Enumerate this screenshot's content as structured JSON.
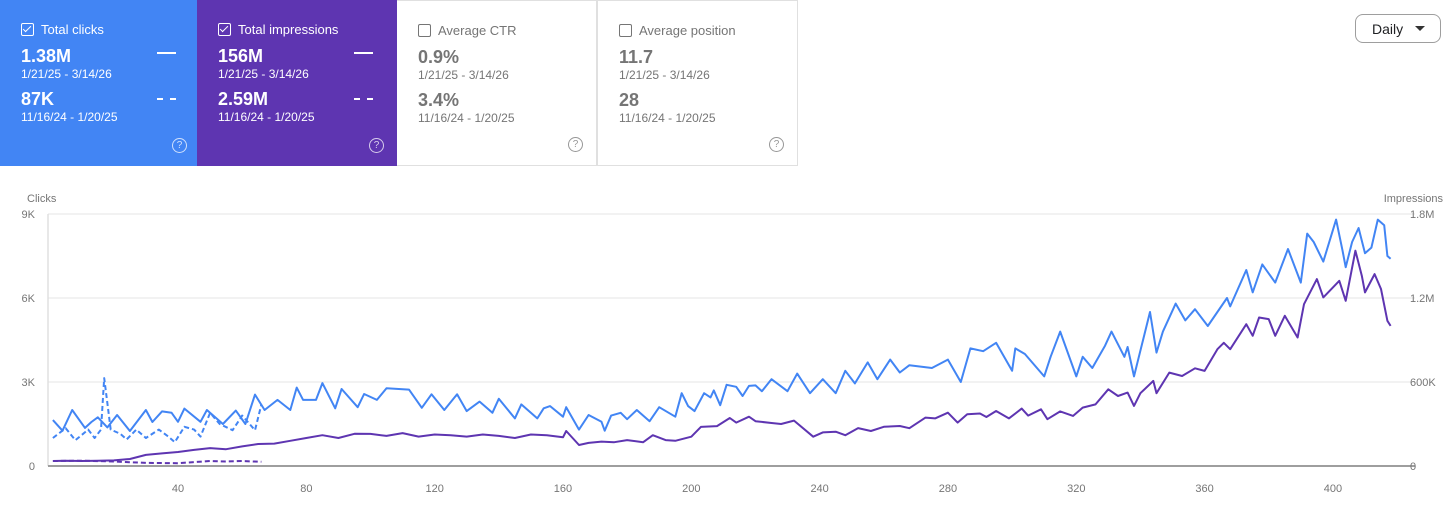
{
  "cards": [
    {
      "label": "Total clicks",
      "checked": true,
      "current": "1.38M",
      "current_range": "1/21/25 - 3/14/26",
      "previous": "87K",
      "previous_range": "11/16/24 - 1/20/25",
      "color": "#4285f4"
    },
    {
      "label": "Total impressions",
      "checked": true,
      "current": "156M",
      "current_range": "1/21/25 - 3/14/26",
      "previous": "2.59M",
      "previous_range": "11/16/24 - 1/20/25",
      "color": "#5e35b1"
    },
    {
      "label": "Average CTR",
      "checked": false,
      "current": "0.9%",
      "current_range": "1/21/25 - 3/14/26",
      "previous": "3.4%",
      "previous_range": "11/16/24 - 1/20/25"
    },
    {
      "label": "Average position",
      "checked": false,
      "current": "11.7",
      "current_range": "1/21/25 - 3/14/26",
      "previous": "28",
      "previous_range": "11/16/24 - 1/20/25"
    }
  ],
  "help_glyph": "?",
  "granularity": {
    "selected": "Daily"
  },
  "chart_data": {
    "type": "line",
    "left_axis": {
      "label": "Clicks",
      "range": [
        0,
        9000
      ],
      "ticks": [
        {
          "value": 0,
          "label": "0"
        },
        {
          "value": 3000,
          "label": "3K"
        },
        {
          "value": 6000,
          "label": "6K"
        },
        {
          "value": 9000,
          "label": "9K"
        }
      ]
    },
    "right_axis": {
      "label": "Impressions",
      "range": [
        0,
        1800000
      ],
      "ticks": [
        {
          "value": 0,
          "label": "0"
        },
        {
          "value": 600000,
          "label": "600K"
        },
        {
          "value": 1200000,
          "label": "1.2M"
        },
        {
          "value": 1800000,
          "label": "1.8M"
        }
      ]
    },
    "x_axis": {
      "range": [
        0,
        420
      ],
      "ticks": [
        40,
        80,
        120,
        160,
        200,
        240,
        280,
        320,
        360,
        400
      ]
    },
    "grid": true,
    "series": [
      {
        "metric": "clicks",
        "period": "current",
        "axis": "left",
        "style": "solid",
        "color": "#4285f4",
        "points": [
          [
            1,
            1640
          ],
          [
            4,
            1260
          ],
          [
            7,
            2000
          ],
          [
            11,
            1360
          ],
          [
            13,
            1570
          ],
          [
            15,
            1740
          ],
          [
            18,
            1380
          ],
          [
            21,
            1820
          ],
          [
            25,
            1250
          ],
          [
            30,
            2000
          ],
          [
            32,
            1570
          ],
          [
            35,
            1950
          ],
          [
            38,
            1900
          ],
          [
            40,
            1580
          ],
          [
            42,
            2050
          ],
          [
            47,
            1580
          ],
          [
            49,
            2000
          ],
          [
            54,
            1500
          ],
          [
            58,
            1980
          ],
          [
            61,
            1500
          ],
          [
            64,
            2550
          ],
          [
            67,
            2000
          ],
          [
            71,
            2360
          ],
          [
            75,
            2000
          ],
          [
            77,
            2800
          ],
          [
            79,
            2360
          ],
          [
            83,
            2360
          ],
          [
            85,
            2960
          ],
          [
            89,
            2060
          ],
          [
            91,
            2750
          ],
          [
            96,
            2100
          ],
          [
            98,
            2570
          ],
          [
            102,
            2360
          ],
          [
            105,
            2780
          ],
          [
            112,
            2730
          ],
          [
            116,
            2080
          ],
          [
            119,
            2560
          ],
          [
            123,
            2000
          ],
          [
            127,
            2560
          ],
          [
            130,
            1960
          ],
          [
            134,
            2300
          ],
          [
            138,
            1900
          ],
          [
            140,
            2400
          ],
          [
            145,
            1700
          ],
          [
            147,
            2200
          ],
          [
            152,
            1700
          ],
          [
            154,
            2060
          ],
          [
            156,
            2140
          ],
          [
            160,
            1760
          ],
          [
            161,
            2100
          ],
          [
            165,
            1300
          ],
          [
            168,
            1820
          ],
          [
            172,
            1580
          ],
          [
            173,
            1260
          ],
          [
            175,
            1800
          ],
          [
            178,
            1900
          ],
          [
            180,
            1670
          ],
          [
            183,
            2000
          ],
          [
            187,
            1600
          ],
          [
            190,
            2100
          ],
          [
            195,
            1760
          ],
          [
            197,
            2600
          ],
          [
            199,
            2140
          ],
          [
            201,
            1960
          ],
          [
            204,
            2600
          ],
          [
            206,
            2450
          ],
          [
            207,
            2700
          ],
          [
            209,
            2170
          ],
          [
            211,
            2900
          ],
          [
            214,
            2830
          ],
          [
            216,
            2500
          ],
          [
            218,
            2860
          ],
          [
            220,
            2880
          ],
          [
            222,
            2670
          ],
          [
            225,
            3100
          ],
          [
            230,
            2670
          ],
          [
            233,
            3300
          ],
          [
            237,
            2600
          ],
          [
            241,
            3100
          ],
          [
            245,
            2600
          ],
          [
            248,
            3400
          ],
          [
            251,
            2950
          ],
          [
            255,
            3700
          ],
          [
            258,
            3100
          ],
          [
            262,
            3800
          ],
          [
            265,
            3340
          ],
          [
            268,
            3600
          ],
          [
            275,
            3500
          ],
          [
            280,
            3800
          ],
          [
            284,
            3000
          ],
          [
            287,
            4200
          ],
          [
            291,
            4100
          ],
          [
            295,
            4400
          ],
          [
            300,
            3400
          ],
          [
            301,
            4200
          ],
          [
            304,
            4000
          ],
          [
            310,
            3200
          ],
          [
            312,
            3900
          ],
          [
            315,
            4800
          ],
          [
            320,
            3200
          ],
          [
            322,
            3900
          ],
          [
            325,
            3500
          ],
          [
            329,
            4300
          ],
          [
            331,
            4800
          ],
          [
            335,
            3900
          ],
          [
            336,
            4250
          ],
          [
            338,
            3200
          ],
          [
            343,
            5500
          ],
          [
            345,
            4050
          ],
          [
            347,
            4800
          ],
          [
            351,
            5800
          ],
          [
            354,
            5200
          ],
          [
            357,
            5600
          ],
          [
            361,
            5000
          ],
          [
            364,
            5500
          ],
          [
            367,
            6000
          ],
          [
            368,
            5700
          ],
          [
            373,
            7000
          ],
          [
            375,
            6200
          ],
          [
            378,
            7200
          ],
          [
            382,
            6550
          ],
          [
            386,
            7750
          ],
          [
            390,
            6550
          ],
          [
            392,
            8300
          ],
          [
            394,
            8000
          ],
          [
            397,
            7300
          ],
          [
            401,
            8800
          ],
          [
            403,
            7700
          ],
          [
            404,
            7100
          ],
          [
            406,
            8000
          ],
          [
            408,
            8500
          ],
          [
            410,
            7600
          ],
          [
            412,
            7800
          ],
          [
            414,
            8800
          ],
          [
            416,
            8600
          ],
          [
            417,
            7500
          ],
          [
            418,
            7400
          ]
        ]
      },
      {
        "metric": "impressions",
        "period": "current",
        "axis": "right",
        "style": "solid",
        "color": "#5e35b1",
        "points": [
          [
            1,
            36000
          ],
          [
            5,
            38000
          ],
          [
            10,
            36000
          ],
          [
            15,
            38000
          ],
          [
            20,
            40000
          ],
          [
            25,
            50000
          ],
          [
            30,
            79000
          ],
          [
            35,
            90000
          ],
          [
            40,
            100000
          ],
          [
            45,
            115000
          ],
          [
            50,
            128000
          ],
          [
            55,
            120000
          ],
          [
            60,
            140000
          ],
          [
            65,
            157000
          ],
          [
            70,
            160000
          ],
          [
            75,
            180000
          ],
          [
            80,
            200000
          ],
          [
            85,
            220000
          ],
          [
            90,
            200000
          ],
          [
            95,
            230000
          ],
          [
            100,
            229000
          ],
          [
            105,
            215000
          ],
          [
            110,
            235000
          ],
          [
            115,
            210000
          ],
          [
            120,
            225000
          ],
          [
            125,
            220000
          ],
          [
            130,
            210000
          ],
          [
            135,
            225000
          ],
          [
            140,
            215000
          ],
          [
            145,
            200000
          ],
          [
            150,
            225000
          ],
          [
            155,
            220000
          ],
          [
            160,
            205000
          ],
          [
            161,
            250000
          ],
          [
            163,
            200000
          ],
          [
            165,
            150000
          ],
          [
            168,
            165000
          ],
          [
            172,
            174000
          ],
          [
            176,
            170000
          ],
          [
            180,
            185000
          ],
          [
            185,
            170000
          ],
          [
            188,
            220000
          ],
          [
            192,
            185000
          ],
          [
            195,
            180000
          ],
          [
            200,
            209000
          ],
          [
            203,
            279000
          ],
          [
            208,
            285000
          ],
          [
            212,
            343000
          ],
          [
            214,
            310000
          ],
          [
            218,
            352000
          ],
          [
            220,
            320000
          ],
          [
            225,
            307000
          ],
          [
            228,
            300000
          ],
          [
            232,
            324000
          ],
          [
            238,
            209000
          ],
          [
            241,
            240000
          ],
          [
            245,
            245000
          ],
          [
            248,
            220000
          ],
          [
            252,
            271000
          ],
          [
            256,
            250000
          ],
          [
            260,
            280000
          ],
          [
            265,
            286000
          ],
          [
            268,
            270000
          ],
          [
            273,
            346000
          ],
          [
            276,
            340000
          ],
          [
            280,
            381000
          ],
          [
            283,
            310000
          ],
          [
            286,
            370000
          ],
          [
            290,
            375000
          ],
          [
            292,
            350000
          ],
          [
            295,
            393000
          ],
          [
            299,
            340000
          ],
          [
            303,
            410000
          ],
          [
            305,
            360000
          ],
          [
            309,
            405000
          ],
          [
            311,
            334000
          ],
          [
            315,
            390000
          ],
          [
            319,
            358000
          ],
          [
            322,
            417000
          ],
          [
            326,
            440000
          ],
          [
            330,
            548000
          ],
          [
            333,
            500000
          ],
          [
            336,
            524000
          ],
          [
            338,
            429000
          ],
          [
            340,
            520000
          ],
          [
            344,
            608000
          ],
          [
            345,
            520000
          ],
          [
            349,
            667000
          ],
          [
            353,
            643000
          ],
          [
            357,
            698000
          ],
          [
            360,
            679000
          ],
          [
            364,
            834000
          ],
          [
            366,
            880000
          ],
          [
            368,
            834000
          ],
          [
            373,
            1013000
          ],
          [
            375,
            930000
          ],
          [
            377,
            1061000
          ],
          [
            380,
            1049000
          ],
          [
            382,
            930000
          ],
          [
            385,
            1073000
          ],
          [
            389,
            918000
          ],
          [
            391,
            1156000
          ],
          [
            395,
            1335000
          ],
          [
            397,
            1204000
          ],
          [
            402,
            1323000
          ],
          [
            404,
            1180000
          ],
          [
            407,
            1538000
          ],
          [
            409,
            1359000
          ],
          [
            410,
            1240000
          ],
          [
            413,
            1371000
          ],
          [
            415,
            1264000
          ],
          [
            417,
            1037000
          ],
          [
            418,
            1001000
          ]
        ]
      },
      {
        "metric": "clicks",
        "period": "previous",
        "axis": "left",
        "style": "dashed",
        "color": "#4285f4",
        "points": [
          [
            1,
            1000
          ],
          [
            5,
            1350
          ],
          [
            8,
            920
          ],
          [
            12,
            1300
          ],
          [
            14,
            1000
          ],
          [
            16,
            1300
          ],
          [
            17,
            3140
          ],
          [
            19,
            1300
          ],
          [
            22,
            1150
          ],
          [
            24,
            950
          ],
          [
            27,
            1300
          ],
          [
            30,
            1000
          ],
          [
            34,
            1300
          ],
          [
            37,
            1050
          ],
          [
            39,
            850
          ],
          [
            42,
            1400
          ],
          [
            45,
            1300
          ],
          [
            47,
            1050
          ],
          [
            50,
            1900
          ],
          [
            53,
            1500
          ],
          [
            57,
            1280
          ],
          [
            60,
            1800
          ],
          [
            64,
            1280
          ],
          [
            66,
            2200
          ]
        ]
      },
      {
        "metric": "impressions",
        "period": "previous",
        "axis": "right",
        "style": "dashed",
        "color": "#5e35b1",
        "points": [
          [
            1,
            36000
          ],
          [
            10,
            38000
          ],
          [
            20,
            32000
          ],
          [
            30,
            22000
          ],
          [
            40,
            20000
          ],
          [
            45,
            28000
          ],
          [
            50,
            36000
          ],
          [
            55,
            32000
          ],
          [
            60,
            36000
          ],
          [
            66,
            30000
          ]
        ]
      }
    ]
  }
}
